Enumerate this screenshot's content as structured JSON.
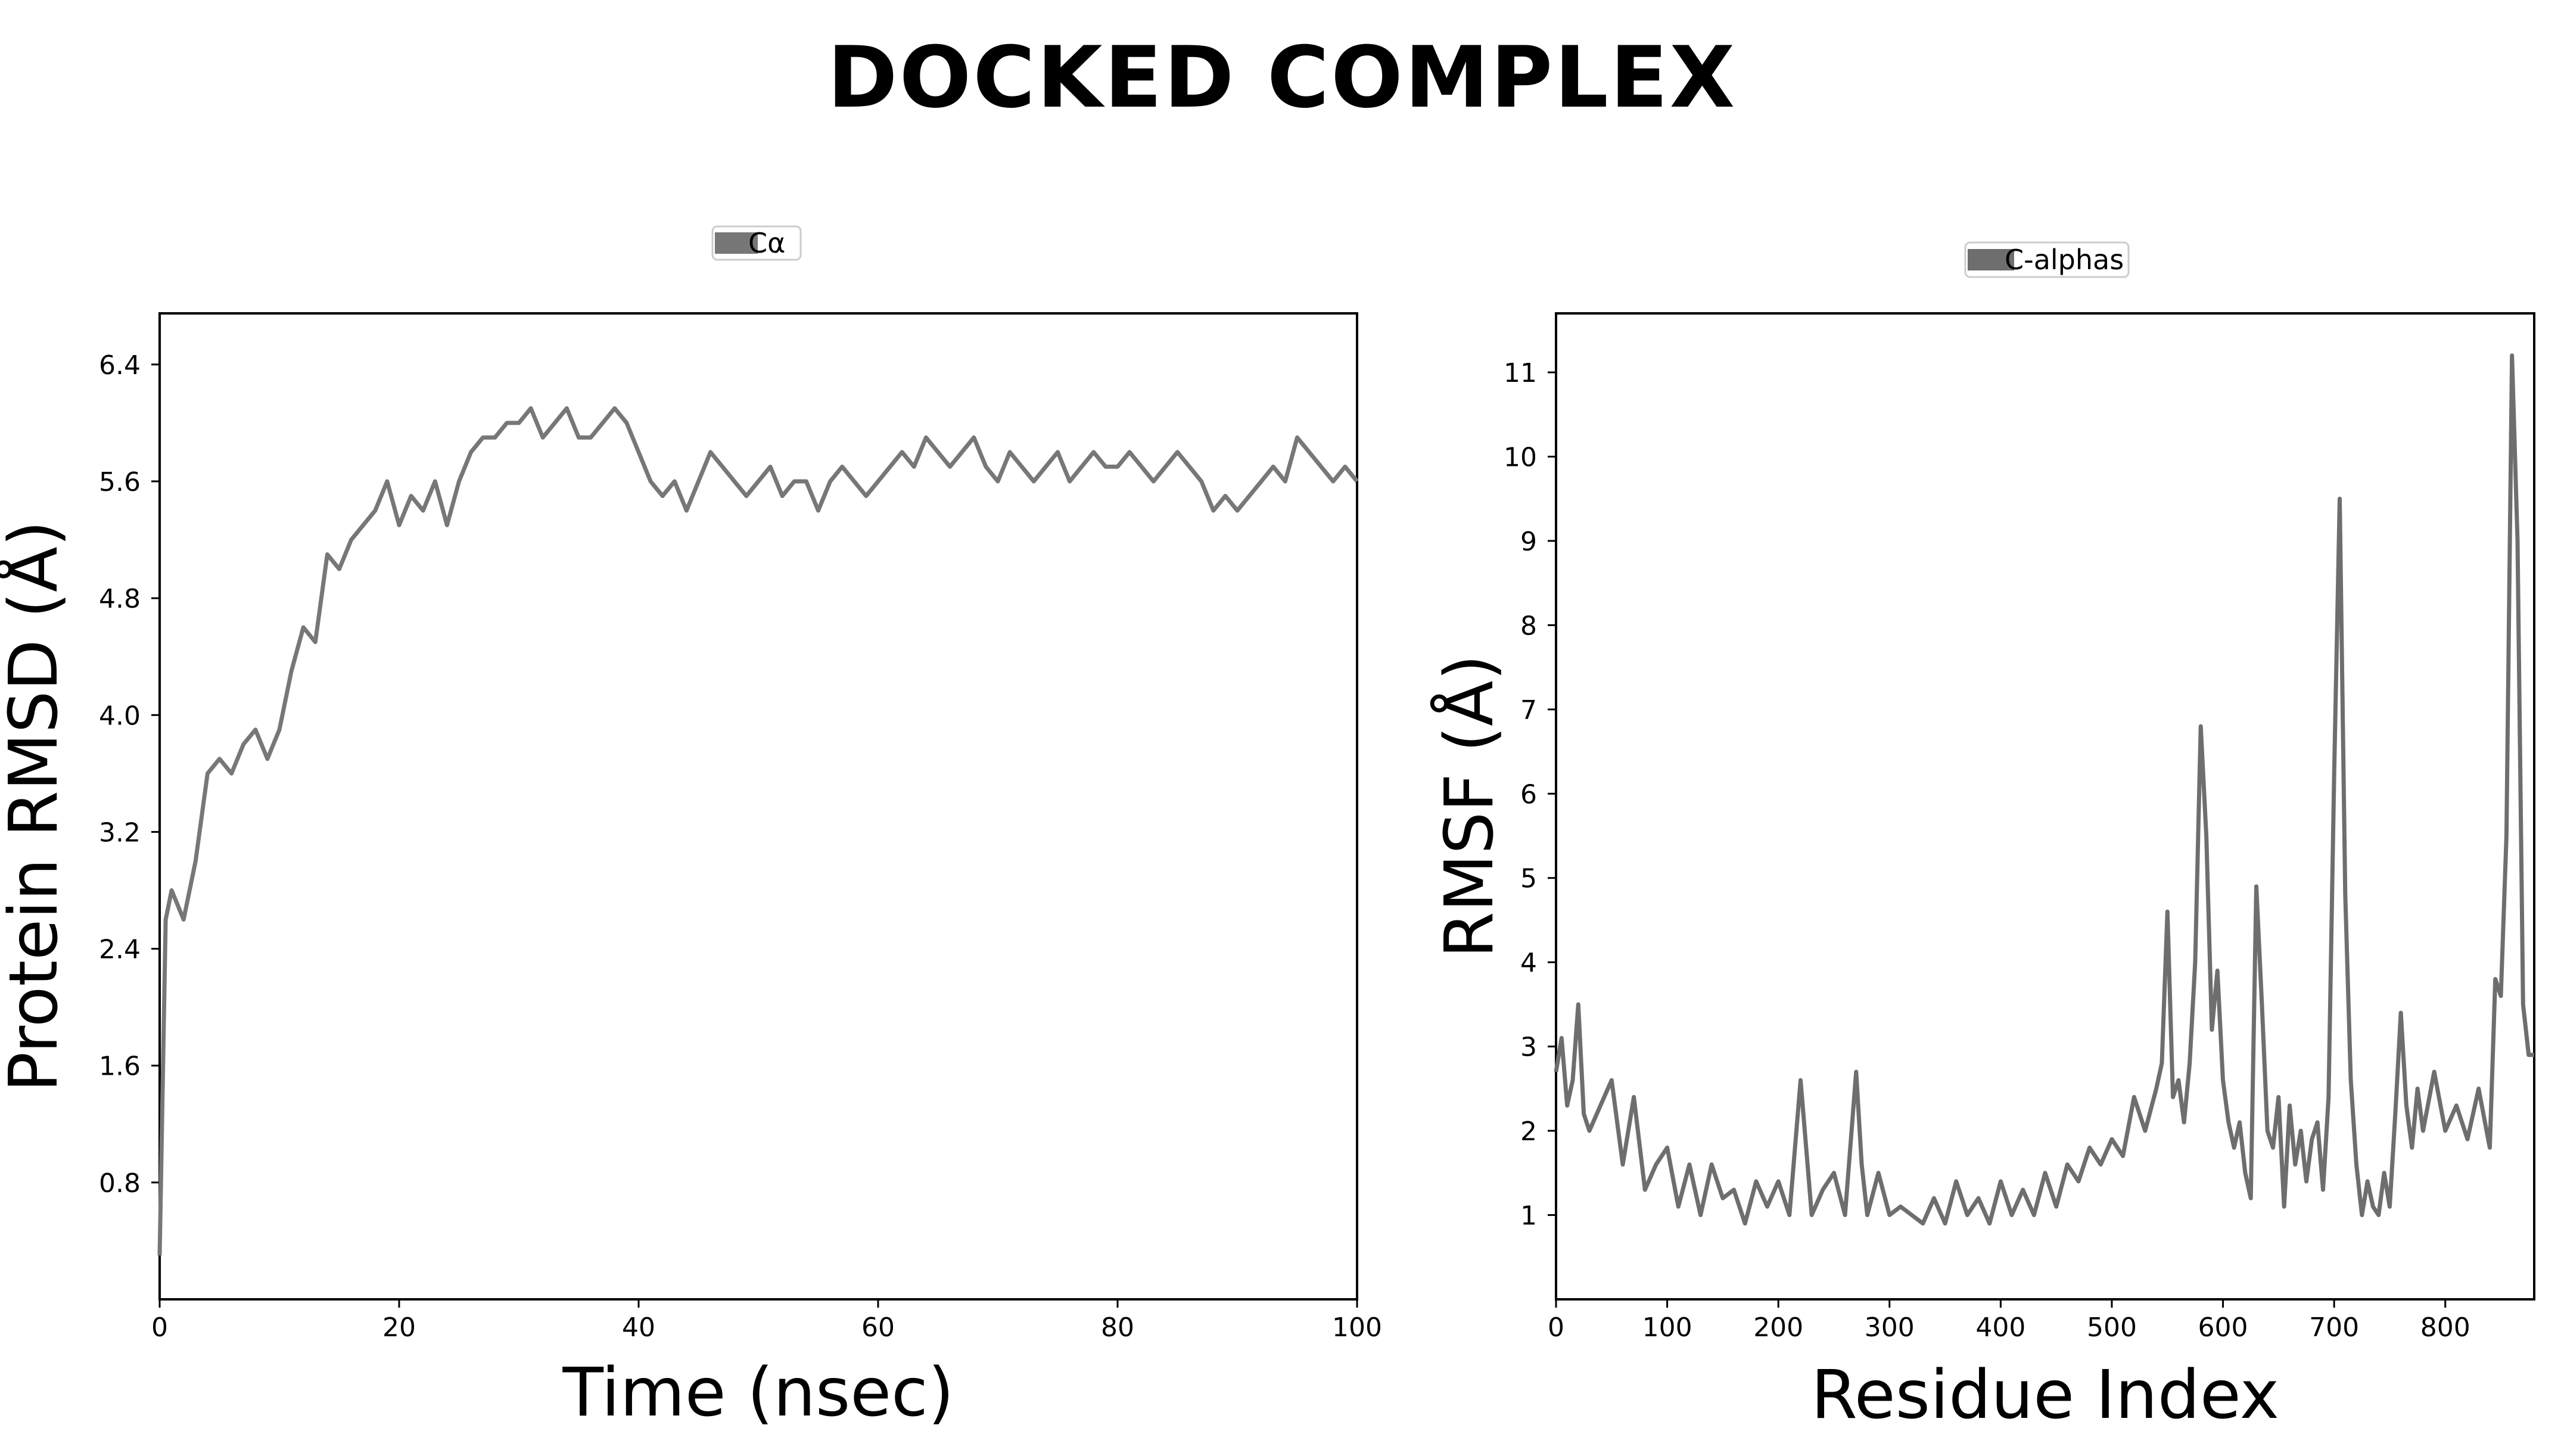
{
  "page": {
    "title": "DOCKED COMPLEX"
  },
  "chart_data": [
    {
      "type": "line",
      "xlabel": "Time (nsec)",
      "ylabel": "Protein RMSD (Å)",
      "xlim": [
        0,
        100
      ],
      "ylim": [
        0,
        6.75
      ],
      "xticks": [
        0,
        20,
        40,
        60,
        80,
        100
      ],
      "yticks": [
        0.8,
        1.6,
        2.4,
        3.2,
        4.0,
        4.8,
        5.6,
        6.4
      ],
      "ytick_labels": [
        "0.8",
        "1.6",
        "2.4",
        "3.2",
        "4.0",
        "4.8",
        "5.6",
        "6.4"
      ],
      "grid": false,
      "legend_position": "above-center",
      "series": [
        {
          "name": "Cα",
          "color": "#777777",
          "x": [
            0,
            0.5,
            1,
            2,
            3,
            4,
            5,
            6,
            7,
            8,
            9,
            10,
            11,
            12,
            13,
            14,
            15,
            16,
            17,
            18,
            19,
            20,
            21,
            22,
            23,
            24,
            25,
            26,
            27,
            28,
            29,
            30,
            31,
            32,
            33,
            34,
            35,
            36,
            37,
            38,
            39,
            40,
            41,
            42,
            43,
            44,
            45,
            46,
            47,
            48,
            49,
            50,
            51,
            52,
            53,
            54,
            55,
            56,
            57,
            58,
            59,
            60,
            61,
            62,
            63,
            64,
            65,
            66,
            67,
            68,
            69,
            70,
            71,
            72,
            73,
            74,
            75,
            76,
            77,
            78,
            79,
            80,
            81,
            82,
            83,
            84,
            85,
            86,
            87,
            88,
            89,
            90,
            91,
            92,
            93,
            94,
            95,
            96,
            97,
            98,
            99,
            100
          ],
          "values": [
            0.3,
            2.6,
            2.8,
            2.6,
            3.0,
            3.6,
            3.7,
            3.6,
            3.8,
            3.9,
            3.7,
            3.9,
            4.3,
            4.6,
            4.5,
            5.1,
            5.0,
            5.2,
            5.3,
            5.4,
            5.6,
            5.3,
            5.5,
            5.4,
            5.6,
            5.3,
            5.6,
            5.8,
            5.9,
            5.9,
            6.0,
            6.0,
            6.1,
            5.9,
            6.0,
            6.1,
            5.9,
            5.9,
            6.0,
            6.1,
            6.0,
            5.8,
            5.6,
            5.5,
            5.6,
            5.4,
            5.6,
            5.8,
            5.7,
            5.6,
            5.5,
            5.6,
            5.7,
            5.5,
            5.6,
            5.6,
            5.4,
            5.6,
            5.7,
            5.6,
            5.5,
            5.6,
            5.7,
            5.8,
            5.7,
            5.9,
            5.8,
            5.7,
            5.8,
            5.9,
            5.7,
            5.6,
            5.8,
            5.7,
            5.6,
            5.7,
            5.8,
            5.6,
            5.7,
            5.8,
            5.7,
            5.7,
            5.8,
            5.7,
            5.6,
            5.7,
            5.8,
            5.7,
            5.6,
            5.4,
            5.5,
            5.4,
            5.5,
            5.6,
            5.7,
            5.6,
            5.9,
            5.8,
            5.7,
            5.6,
            5.7,
            5.6
          ]
        }
      ]
    },
    {
      "type": "line",
      "xlabel": "Residue Index",
      "ylabel": "RMSF (Å)",
      "xlim": [
        0,
        880
      ],
      "ylim": [
        0,
        11.7
      ],
      "xticks": [
        0,
        100,
        200,
        300,
        400,
        500,
        600,
        700,
        800
      ],
      "yticks": [
        1,
        2,
        3,
        4,
        5,
        6,
        7,
        8,
        9,
        10,
        11
      ],
      "ytick_labels": [
        "1",
        "2",
        "3",
        "4",
        "5",
        "6",
        "7",
        "8",
        "9",
        "10",
        "11"
      ],
      "grid": false,
      "legend_position": "above-center",
      "series": [
        {
          "name": "C-alphas",
          "color": "#6e6e6e",
          "x": [
            0,
            5,
            10,
            15,
            20,
            25,
            30,
            40,
            50,
            60,
            70,
            80,
            90,
            100,
            110,
            120,
            130,
            140,
            150,
            160,
            170,
            180,
            190,
            200,
            210,
            220,
            230,
            240,
            250,
            260,
            270,
            275,
            280,
            290,
            300,
            310,
            320,
            330,
            340,
            350,
            360,
            370,
            380,
            390,
            400,
            410,
            420,
            430,
            440,
            450,
            460,
            470,
            480,
            490,
            500,
            510,
            520,
            530,
            540,
            545,
            550,
            555,
            560,
            565,
            570,
            575,
            580,
            585,
            590,
            595,
            600,
            605,
            610,
            615,
            620,
            625,
            630,
            635,
            640,
            645,
            650,
            655,
            660,
            665,
            670,
            675,
            680,
            685,
            690,
            695,
            700,
            705,
            710,
            715,
            720,
            725,
            730,
            735,
            740,
            745,
            750,
            755,
            760,
            765,
            770,
            775,
            780,
            790,
            800,
            810,
            820,
            830,
            840,
            845,
            850,
            855,
            860,
            865,
            870,
            875,
            880
          ],
          "values": [
            2.7,
            3.1,
            2.3,
            2.6,
            3.5,
            2.2,
            2.0,
            2.3,
            2.6,
            1.6,
            2.4,
            1.3,
            1.6,
            1.8,
            1.1,
            1.6,
            1.0,
            1.6,
            1.2,
            1.3,
            0.9,
            1.4,
            1.1,
            1.4,
            1.0,
            2.6,
            1.0,
            1.3,
            1.5,
            1.0,
            2.7,
            1.6,
            1.0,
            1.5,
            1.0,
            1.1,
            1.0,
            0.9,
            1.2,
            0.9,
            1.4,
            1.0,
            1.2,
            0.9,
            1.4,
            1.0,
            1.3,
            1.0,
            1.5,
            1.1,
            1.6,
            1.4,
            1.8,
            1.6,
            1.9,
            1.7,
            2.4,
            2.0,
            2.5,
            2.8,
            4.6,
            2.4,
            2.6,
            2.1,
            2.8,
            4.0,
            6.8,
            5.5,
            3.2,
            3.9,
            2.6,
            2.1,
            1.8,
            2.1,
            1.5,
            1.2,
            4.9,
            3.5,
            2.0,
            1.8,
            2.4,
            1.1,
            2.3,
            1.6,
            2.0,
            1.4,
            1.9,
            2.1,
            1.3,
            2.4,
            6.2,
            9.5,
            4.8,
            2.6,
            1.6,
            1.0,
            1.4,
            1.1,
            1.0,
            1.5,
            1.1,
            2.2,
            3.4,
            2.3,
            1.8,
            2.5,
            2.0,
            2.7,
            2.0,
            2.3,
            1.9,
            2.5,
            1.8,
            3.8,
            3.6,
            5.5,
            11.2,
            9.0,
            3.5,
            2.9,
            2.9
          ]
        }
      ]
    }
  ]
}
